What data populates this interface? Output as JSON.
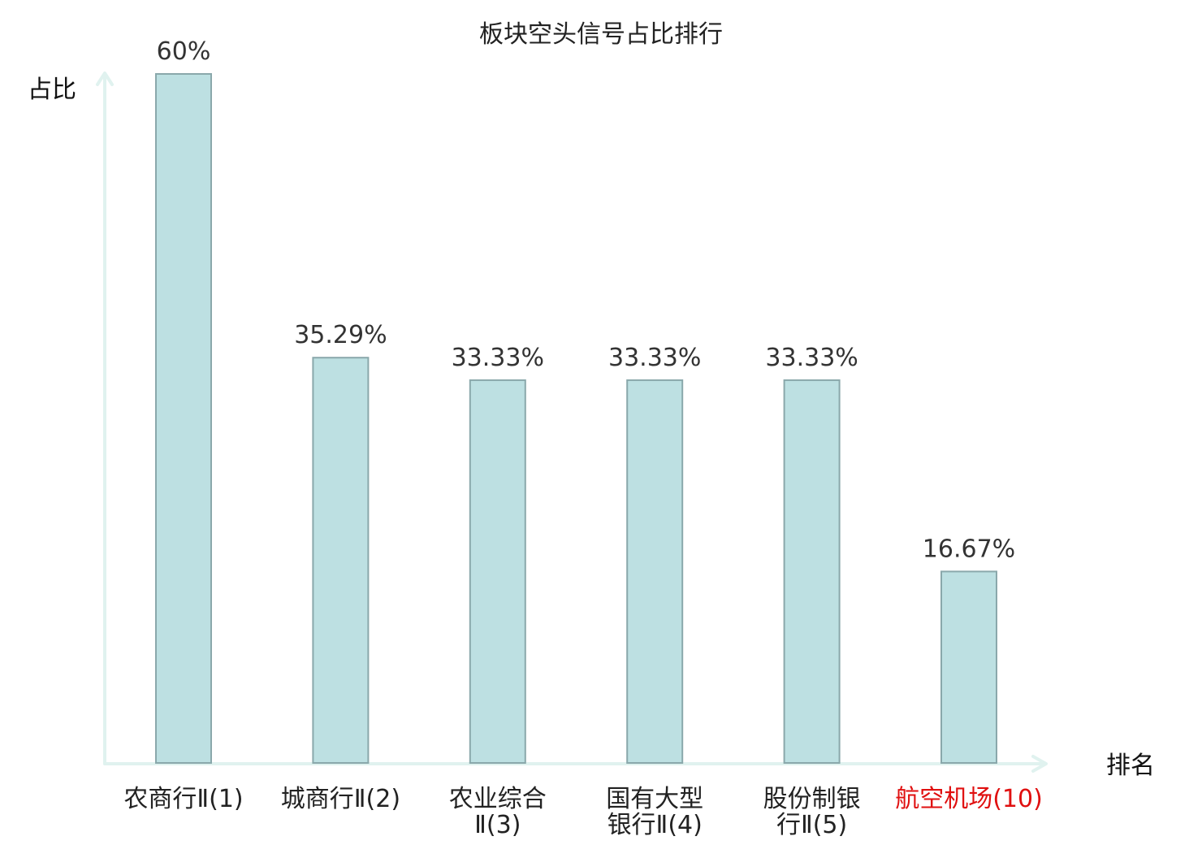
{
  "chart_data": {
    "type": "bar",
    "title": "板块空头信号占比排行",
    "ylabel": "占比",
    "xlabel": "排名",
    "categories": [
      [
        "农商行Ⅱ(1)"
      ],
      [
        "城商行Ⅱ(2)"
      ],
      [
        "农业综合",
        "Ⅱ(3)"
      ],
      [
        "国有大型",
        "银行Ⅱ(4)"
      ],
      [
        "股份制银",
        "行Ⅱ(5)"
      ],
      [
        "航空机场(10)"
      ]
    ],
    "values": [
      60,
      35.29,
      33.33,
      33.33,
      33.33,
      16.67
    ],
    "value_labels": [
      "60%",
      "35.29%",
      "33.33%",
      "33.33%",
      "33.33%",
      "16.67%"
    ],
    "highlight_index": 5,
    "ylim": [
      0,
      60
    ],
    "grid": false,
    "colors": {
      "bar_fill": "#bde0e2",
      "bar_stroke": "#8aa8ab",
      "axis": "#e0f2ef",
      "highlight_text": "#e01010",
      "text": "#222222"
    }
  }
}
